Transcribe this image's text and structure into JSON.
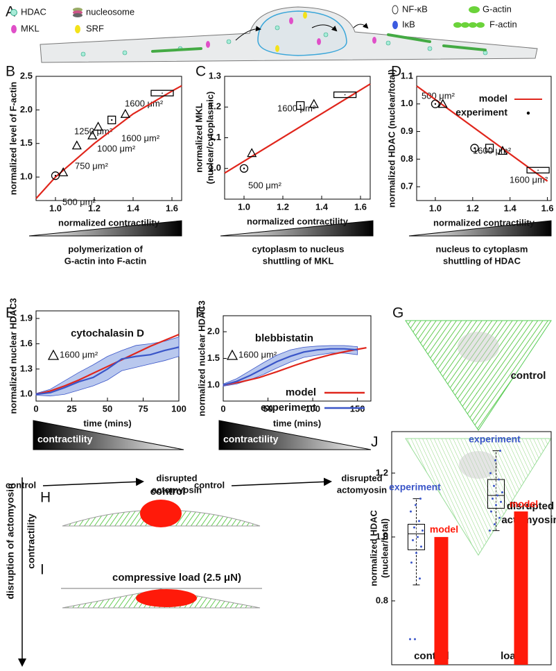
{
  "figure": {
    "panels": [
      "A",
      "B",
      "C",
      "D",
      "E",
      "F",
      "G",
      "H",
      "I",
      "J"
    ],
    "schematic_legend": [
      "HDAC",
      "nucleosome",
      "MKL",
      "SRF",
      "NF-κB",
      "IκB",
      "G-actin",
      "F-actin"
    ],
    "captions_b": [
      "polymerization of",
      "G-actin into F-actin"
    ],
    "captions_c": [
      "cytoplasm to nucleus",
      "shuttling of MKL"
    ],
    "captions_d": [
      "nucleus to cytoplasm",
      "shuttling of HDAC"
    ],
    "gradient_e": {
      "label": "contractility",
      "from": "control",
      "to": [
        "disrupted",
        "actomyosin"
      ]
    },
    "gradient_f": {
      "label": "contractility",
      "from": "control",
      "to": [
        "disrupted",
        "actomyosin"
      ]
    },
    "panel_g": {
      "top": "control",
      "bottom": [
        "disrupted",
        "actomyosin"
      ]
    },
    "panel_h": "control",
    "panel_i": "compressive load (2.5 μN)",
    "side_arrow": [
      "disruption of actomyosin",
      "contractility"
    ]
  },
  "chart_data": [
    {
      "type": "scatter",
      "xlabel": "normalized contractility",
      "ylabel": [
        "normalized level of F-actin"
      ],
      "xlim": [
        0.9,
        1.65
      ],
      "xticks": [
        {
          "value": 1,
          "label": "1.0"
        },
        1.2,
        1.4,
        1.6
      ],
      "ylim": [
        0.65,
        2.5
      ],
      "yticks": [
        {
          "value": 1,
          "label": "1.0"
        },
        1.5,
        {
          "value": 2,
          "label": "2.0"
        },
        2.5
      ],
      "series": [
        {
          "color": "#e0261c",
          "x": [
            0.9,
            1.0,
            1.2,
            1.4,
            1.6,
            1.65
          ],
          "values": [
            0.68,
            1.0,
            1.5,
            1.94,
            2.28,
            2.36
          ]
        }
      ],
      "points": {
        "color": "#000000",
        "x": [
          1.0,
          1.04,
          1.11,
          1.19,
          1.22,
          1.29,
          1.36,
          1.55
        ],
        "values": [
          1.02,
          1.07,
          1.47,
          1.62,
          1.75,
          1.85,
          1.94,
          2.25
        ],
        "markers": [
          "circle",
          "triangle",
          "triangle",
          "triangle",
          "triangle",
          "square",
          "triangle",
          "rect"
        ]
      },
      "annotations": [
        "1600 μm²",
        "1250 μm²",
        "1000 μm²",
        "750 μm²",
        "500 μm²",
        "1600 μm²"
      ]
    },
    {
      "type": "scatter",
      "xlabel": "normalized contractility",
      "ylabel": [
        "normalized MKL",
        "(nuclear/cytoplasmic)"
      ],
      "xlim": [
        0.9,
        1.65
      ],
      "xticks": [
        {
          "value": 1,
          "label": "1.0"
        },
        1.2,
        1.4,
        1.6
      ],
      "ylim": [
        0.9,
        1.3
      ],
      "yticks": [
        {
          "value": 1,
          "label": "1.0"
        },
        1.1,
        1.2,
        1.3
      ],
      "series": [
        {
          "color": "#e0261c",
          "x": [
            0.9,
            1.65
          ],
          "values": [
            0.985,
            1.275
          ]
        }
      ],
      "points": {
        "color": "#000000",
        "x": [
          1.0,
          1.04,
          1.29,
          1.36,
          1.52
        ],
        "values": [
          1.0,
          1.05,
          1.205,
          1.21,
          1.24
        ],
        "markers": [
          "circle",
          "triangle",
          "square",
          "triangle",
          "rect"
        ]
      },
      "annotations": [
        "1600 μm²",
        "500 μm²"
      ]
    },
    {
      "type": "scatter",
      "xlabel": "normalized contractility",
      "ylabel": [
        "normalized HDAC (nuclear/total)"
      ],
      "xlim": [
        0.9,
        1.62
      ],
      "xticks": [
        {
          "value": 1,
          "label": "1.0"
        },
        1.2,
        1.4,
        1.6
      ],
      "ylim": [
        0.65,
        1.1
      ],
      "yticks": [
        0.7,
        0.8,
        0.9,
        {
          "value": 1,
          "label": "1.0"
        },
        1.1
      ],
      "series": [
        {
          "name": "model",
          "color": "#e0261c",
          "x": [
            0.9,
            1.6
          ],
          "values": [
            1.065,
            0.72
          ]
        }
      ],
      "points": {
        "name": "experiment",
        "color": "#000000",
        "x": [
          1.0,
          1.04,
          1.21,
          1.29,
          1.36,
          1.55
        ],
        "values": [
          1.0,
          1.0,
          0.84,
          0.84,
          0.83,
          0.76
        ],
        "markers": [
          "circle",
          "triangle",
          "circle",
          "square",
          "triangle",
          "rect"
        ]
      },
      "annotations": [
        "500 μm²",
        "1600 μm²",
        "1600 μm²"
      ]
    },
    {
      "type": "line",
      "title": "cytochalasin D",
      "xlabel": "time (mins)",
      "ylabel": [
        "normalized nuclear HDAC3"
      ],
      "xlim": [
        0,
        100
      ],
      "xticks": [
        0,
        25,
        50,
        75,
        100
      ],
      "ylim": [
        0.92,
        1.99
      ],
      "yticks": [
        {
          "value": 1,
          "label": "1.0"
        },
        1.3,
        1.6,
        1.9
      ],
      "series": [
        {
          "color": "#e0261c",
          "x": [
            0,
            10,
            20,
            30,
            40,
            50,
            60,
            70,
            80,
            90,
            100
          ],
          "values": [
            1.0,
            1.04,
            1.1,
            1.17,
            1.25,
            1.33,
            1.41,
            1.49,
            1.57,
            1.64,
            1.71
          ]
        },
        {
          "color": "#3a55c8",
          "band_color": "#b9c8ee",
          "x": [
            0,
            10,
            20,
            30,
            40,
            50,
            60,
            70,
            80,
            90,
            100
          ],
          "values": [
            1.0,
            1.02,
            1.08,
            1.15,
            1.2,
            1.3,
            1.42,
            1.45,
            1.47,
            1.52,
            1.56
          ],
          "lower": [
            0.99,
            0.98,
            1.0,
            1.05,
            1.1,
            1.17,
            1.28,
            1.32,
            1.36,
            1.4,
            1.45
          ],
          "upper": [
            1.01,
            1.06,
            1.16,
            1.26,
            1.35,
            1.45,
            1.52,
            1.58,
            1.6,
            1.63,
            1.68
          ]
        }
      ],
      "annotations": [
        "1600 μm²"
      ]
    },
    {
      "type": "line",
      "title": "blebbistatin",
      "xlabel": "time (mins)",
      "ylabel": [
        "normalized nuclear HDAC3"
      ],
      "xlim": [
        0,
        165
      ],
      "xticks": [
        0,
        50,
        100,
        150
      ],
      "ylim": [
        0.7,
        2.3
      ],
      "yticks": [
        {
          "value": 1,
          "label": "1.0"
        },
        1.5,
        {
          "value": 2,
          "label": "2.0"
        }
      ],
      "series": [
        {
          "name": "model",
          "color": "#e0261c",
          "x": [
            0,
            20,
            40,
            60,
            80,
            100,
            120,
            140,
            160
          ],
          "values": [
            1.0,
            1.06,
            1.14,
            1.25,
            1.37,
            1.48,
            1.57,
            1.64,
            1.7
          ]
        },
        {
          "name": "experiment",
          "color": "#3a55c8",
          "band_color": "#b9c8ee",
          "x": [
            0,
            15,
            30,
            45,
            60,
            75,
            90,
            105,
            120,
            135,
            150
          ],
          "values": [
            1.0,
            1.07,
            1.18,
            1.31,
            1.44,
            1.54,
            1.62,
            1.66,
            1.68,
            1.68,
            1.66
          ],
          "lower": [
            0.98,
            1.02,
            1.1,
            1.2,
            1.32,
            1.43,
            1.52,
            1.56,
            1.6,
            1.6,
            1.57
          ],
          "upper": [
            1.02,
            1.12,
            1.27,
            1.42,
            1.56,
            1.66,
            1.71,
            1.73,
            1.74,
            1.74,
            1.72
          ]
        }
      ],
      "annotations": [
        "1600 μm²"
      ]
    },
    {
      "type": "box",
      "ylabel": [
        "normalized HDAC",
        "(nuclear/total)"
      ],
      "categories": [
        "control",
        "load"
      ],
      "ylim": [
        0.6,
        1.33
      ],
      "yticks": [
        0.8,
        {
          "value": 1,
          "label": "1.0"
        },
        1.2
      ],
      "experiment": {
        "name": "experiment",
        "color": "#3a55c8",
        "whisker_low": [
          0.85,
          1.02
        ],
        "q1": [
          0.96,
          1.09
        ],
        "median": [
          1.01,
          1.13
        ],
        "q3": [
          1.04,
          1.18
        ],
        "whisker_high": [
          1.12,
          1.27
        ],
        "points": [
          [
            0.68,
            0.68,
            0.87,
            0.92,
            0.95,
            0.97,
            0.99,
            1.0,
            1.02,
            1.03,
            1.05,
            1.08,
            1.1,
            1.12
          ],
          [
            1.02,
            1.04,
            1.06,
            1.08,
            1.1,
            1.11,
            1.12,
            1.13,
            1.14,
            1.16,
            1.18,
            1.2,
            1.24,
            1.27
          ]
        ]
      },
      "model": {
        "name": "model",
        "color": "#ff1a0a",
        "values": [
          1.0,
          1.08
        ]
      }
    }
  ]
}
